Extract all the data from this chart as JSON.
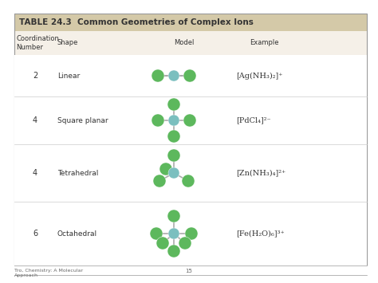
{
  "title": "TABLE 24.3  Common Geometries of Complex Ions",
  "title_bg": "#d4c9a8",
  "header_bg": "#f5f0e8",
  "col_headers": [
    "Coordination\nNumber",
    "Shape",
    "Model",
    "Example"
  ],
  "rows": [
    {
      "coord": "2",
      "shape": "Linear",
      "example": "[Ag(NH₃)₂]⁺",
      "geometry": "linear"
    },
    {
      "coord": "4",
      "shape": "Square planar",
      "example": "[PdCl₄]²⁻",
      "geometry": "square_planar"
    },
    {
      "coord": "4",
      "shape": "Tetrahedral",
      "example": "[Zn(NH₃)₄]²⁺",
      "geometry": "tetrahedral"
    },
    {
      "coord": "6",
      "shape": "Octahedral",
      "example": "[Fe(H₂O)₆]³⁺",
      "geometry": "octahedral"
    }
  ],
  "ligand_color": "#5db85d",
  "metal_color": "#7bbfbf",
  "bond_color": "#aaaaaa",
  "footer_left": "Tro, Chemistry: A Molecular\nApproach",
  "footer_center": "15",
  "bg_color": "#ffffff",
  "border_color": "#cccccc",
  "title_text_color": "#333333",
  "body_text_color": "#333333"
}
